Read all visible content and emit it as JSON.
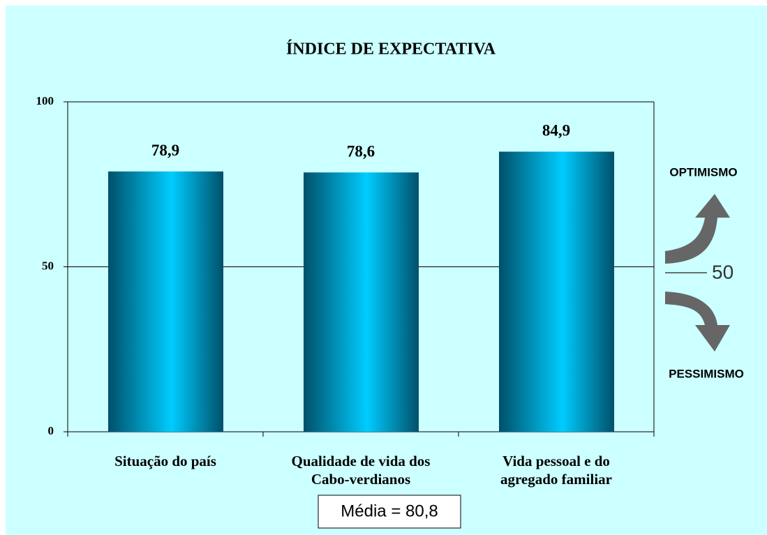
{
  "chart_data": {
    "type": "bar",
    "title": "ÍNDICE DE EXPECTATIVA",
    "categories": [
      "Situação do país",
      "Qualidade de vida dos\nCabo-verdianos",
      "Vida pessoal e do\nagregado familiar"
    ],
    "values": [
      78.9,
      78.6,
      84.9
    ],
    "value_labels": [
      "78,9",
      "78,6",
      "84,9"
    ],
    "color": "#00ccff",
    "ylim": [
      0,
      100
    ],
    "yticks": [
      0,
      50,
      100
    ],
    "grid": true,
    "annotations": {
      "optimism": "OPTIMISMO",
      "pessimism": "PESSIMISMO",
      "neutral": "50",
      "mean": "Média = 80,8"
    }
  }
}
